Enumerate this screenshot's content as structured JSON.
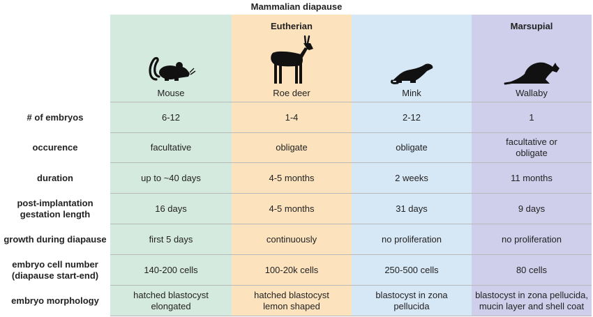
{
  "title": "Mammalian diapause",
  "groups": {
    "eutherian": "Eutherian",
    "marsupial": "Marsupial"
  },
  "animals": [
    "Mouse",
    "Roe deer",
    "Mink",
    "Wallaby"
  ],
  "icons": [
    "mouse-icon",
    "roe-deer-icon",
    "mink-icon",
    "wallaby-icon"
  ],
  "colors": {
    "mouse": "#d5eadf",
    "roe_deer": "#fde3bd",
    "mink": "#d6e7f6",
    "wallaby": "#cfcfeb"
  },
  "rows": [
    {
      "label": "# of embryos",
      "values": [
        "6-12",
        "1-4",
        "2-12",
        "1"
      ]
    },
    {
      "label": "occurence",
      "values": [
        "facultative",
        "obligate",
        "obligate",
        "facultative or\nobligate"
      ]
    },
    {
      "label": "duration",
      "values": [
        "up to ~40 days",
        "4-5 months",
        "2 weeks",
        "11 months"
      ]
    },
    {
      "label": "post-implantation\ngestation length",
      "values": [
        "16 days",
        "4-5 months",
        "31 days",
        "9 days"
      ]
    },
    {
      "label": "growth during diapause",
      "values": [
        "first 5 days",
        "continuously",
        "no proliferation",
        "no proliferation"
      ]
    },
    {
      "label": "embryo cell number\n(diapause start-end)",
      "values": [
        "140-200 cells",
        "100-20k cells",
        "250-500 cells",
        "80 cells"
      ]
    },
    {
      "label": "embryo morphology",
      "values": [
        "hatched blastocyst\nelongated",
        "hatched blastocyst\nlemon shaped",
        "blastocyst in zona\npellucida",
        "blastocyst in zona pellucida,\nmucin layer and shell coat"
      ]
    }
  ]
}
